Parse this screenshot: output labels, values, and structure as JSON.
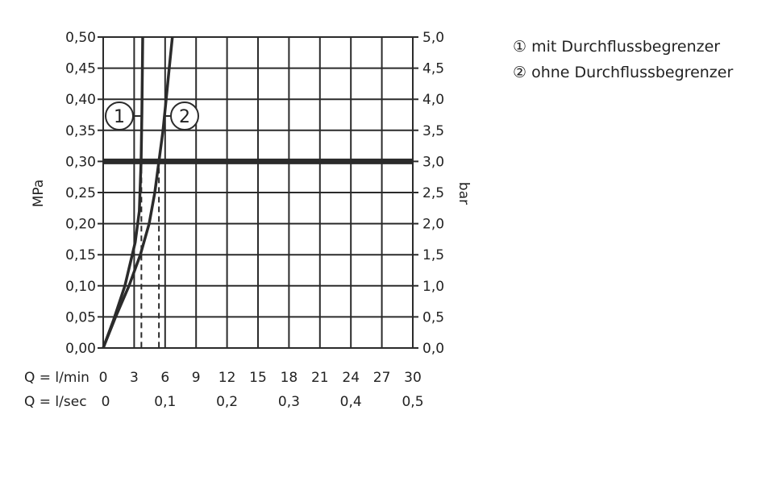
{
  "chart_data": {
    "type": "line",
    "ylabel_left": "MPa",
    "ylabel_right": "bar",
    "xlim": [
      0,
      30
    ],
    "ylim": [
      0,
      0.5
    ],
    "grid": true,
    "x_ticks": [
      0,
      3,
      6,
      9,
      12,
      15,
      18,
      21,
      24,
      27,
      30
    ],
    "x_tick_labels": [
      "0",
      "3",
      "6",
      "9",
      "12",
      "15",
      "18",
      "21",
      "24",
      "27",
      "30"
    ],
    "x_label_row1": "Q = l/min",
    "x_label_row2": "Q = l/sec",
    "x2_ticks": [
      0,
      6,
      12,
      18,
      24,
      30
    ],
    "x2_tick_labels": [
      "0",
      "0,1",
      "0,2",
      "0,3",
      "0,4",
      "0,5"
    ],
    "y_ticks": [
      0,
      0.05,
      0.1,
      0.15,
      0.2,
      0.25,
      0.3,
      0.35,
      0.4,
      0.45,
      0.5
    ],
    "y_tick_labels": [
      "0,00",
      "0,05",
      "0,10",
      "0,15",
      "0,20",
      "0,25",
      "0,30",
      "0,35",
      "0,40",
      "0,45",
      "0,50"
    ],
    "y_right_tick_labels": [
      "0,0",
      "0,5",
      "1,0",
      "1,5",
      "2,0",
      "2,5",
      "3,0",
      "3,5",
      "4,0",
      "4,5",
      "5,0"
    ],
    "reference_line_y": 0.3,
    "series": [
      {
        "name": "① mit Durchflussbegrenzer",
        "marker": "1",
        "x": [
          0,
          1,
          2.1,
          3.1,
          3.5,
          3.67,
          3.75,
          3.8,
          3.83
        ],
        "y": [
          0,
          0.045,
          0.1,
          0.17,
          0.22,
          0.3,
          0.38,
          0.45,
          0.5
        ],
        "dashed_drop_x": 3.7
      },
      {
        "name": "② ohne Durchflussbegrenzer",
        "marker": "2",
        "x": [
          0,
          1.2,
          2.5,
          3.6,
          4.45,
          5.0,
          5.4,
          5.8,
          6.1,
          6.4,
          6.7
        ],
        "y": [
          0,
          0.05,
          0.1,
          0.15,
          0.2,
          0.25,
          0.3,
          0.35,
          0.4,
          0.45,
          0.5
        ],
        "dashed_drop_x": 5.4
      }
    ],
    "line_color": "#2b2b2b"
  },
  "legend": {
    "item1": "① mit Durchflussbegrenzer",
    "item2": "② ohne Durchflussbegrenzer"
  }
}
